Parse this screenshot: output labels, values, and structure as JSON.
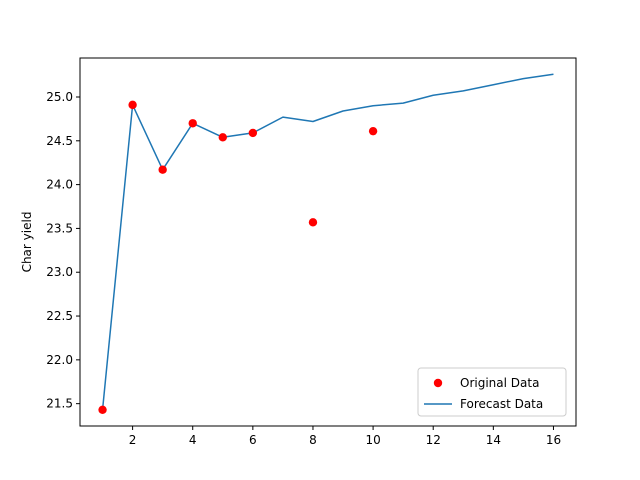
{
  "chart_data": {
    "type": "scatter+line",
    "title": "",
    "xlabel": "",
    "ylabel": "Char yield",
    "xlim": [
      0.25,
      16.75
    ],
    "ylim": [
      21.245,
      25.445
    ],
    "x_ticks": [
      2,
      4,
      6,
      8,
      10,
      12,
      14,
      16
    ],
    "y_ticks": [
      21.5,
      22.0,
      22.5,
      23.0,
      23.5,
      24.0,
      24.5,
      25.0
    ],
    "legend_position": "lower-right",
    "grid": false,
    "series": [
      {
        "name": "Original Data",
        "kind": "scatter",
        "color": "#ff0000",
        "x": [
          1,
          2,
          3,
          4,
          5,
          6,
          8,
          10
        ],
        "y": [
          21.43,
          24.91,
          24.17,
          24.7,
          24.54,
          24.59,
          23.57,
          24.61
        ]
      },
      {
        "name": "Forecast Data",
        "kind": "line",
        "color": "#1f77b4",
        "x": [
          1,
          2,
          3,
          4,
          5,
          6,
          7,
          8,
          9,
          10,
          11,
          12,
          13,
          14,
          15,
          16
        ],
        "y": [
          21.43,
          24.91,
          24.17,
          24.7,
          24.54,
          24.59,
          24.77,
          24.72,
          24.84,
          24.9,
          24.93,
          25.02,
          25.07,
          25.14,
          25.21,
          25.26
        ]
      }
    ]
  }
}
